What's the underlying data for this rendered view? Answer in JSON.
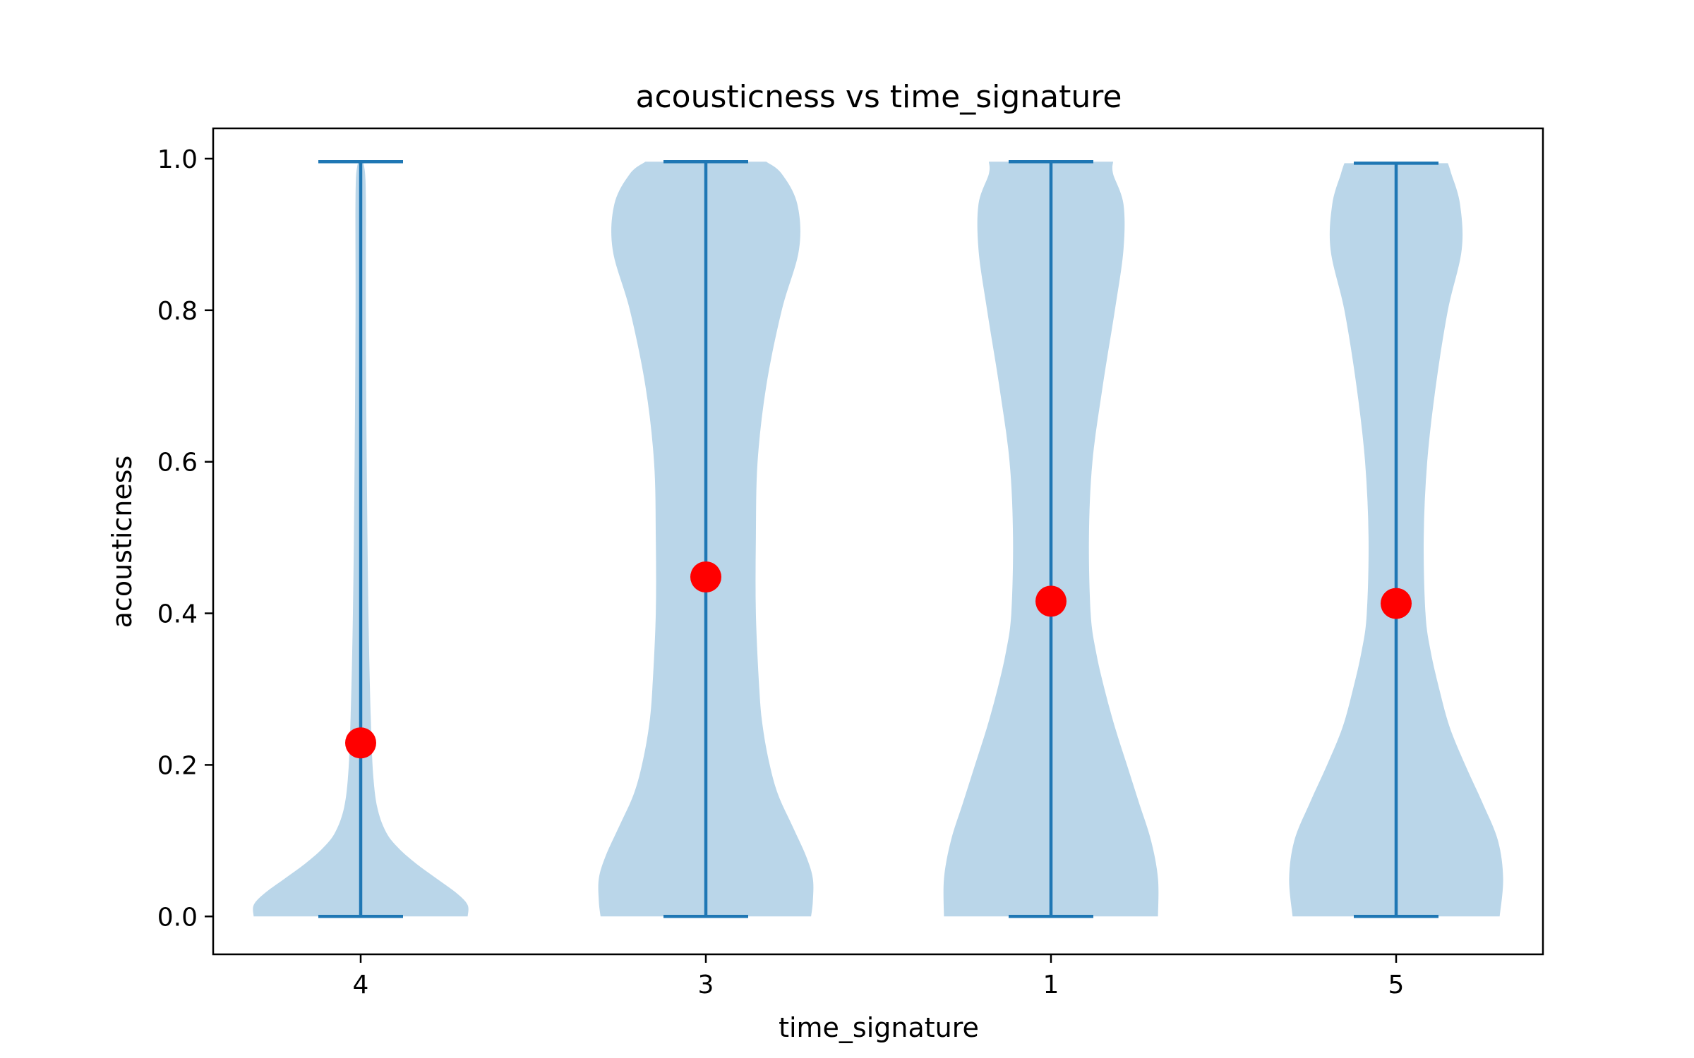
{
  "chart_data": {
    "type": "violin",
    "title": "acousticness vs time_signature",
    "xlabel": "time_signature",
    "ylabel": "acousticness",
    "categories": [
      "4",
      "3",
      "1",
      "5"
    ],
    "ylim": [
      -0.05,
      1.04
    ],
    "yticks": [
      0.0,
      0.2,
      0.4,
      0.6,
      0.8,
      1.0
    ],
    "ytick_labels": [
      "0.0",
      "0.2",
      "0.4",
      "0.6",
      "0.8",
      "1.0"
    ],
    "grid": false,
    "colors": {
      "violin_fill": "#bad6e9",
      "violin_line": "#1f77b4",
      "mean_marker": "#ff0000"
    },
    "violins": [
      {
        "category": "4",
        "min": 0.0,
        "max": 0.996,
        "mean": 0.229,
        "profile": [
          [
            0.0,
            0.62
          ],
          [
            0.015,
            0.62
          ],
          [
            0.03,
            0.56
          ],
          [
            0.05,
            0.44
          ],
          [
            0.07,
            0.32
          ],
          [
            0.09,
            0.22
          ],
          [
            0.11,
            0.15
          ],
          [
            0.14,
            0.1
          ],
          [
            0.18,
            0.075
          ],
          [
            0.25,
            0.06
          ],
          [
            0.4,
            0.045
          ],
          [
            0.6,
            0.035
          ],
          [
            0.8,
            0.03
          ],
          [
            0.95,
            0.03
          ],
          [
            0.99,
            0.02
          ],
          [
            0.996,
            0.0
          ]
        ]
      },
      {
        "category": "3",
        "min": 0.0,
        "max": 0.996,
        "mean": 0.448,
        "profile": [
          [
            0.0,
            0.61
          ],
          [
            0.02,
            0.62
          ],
          [
            0.05,
            0.62
          ],
          [
            0.08,
            0.58
          ],
          [
            0.12,
            0.5
          ],
          [
            0.16,
            0.42
          ],
          [
            0.2,
            0.37
          ],
          [
            0.25,
            0.33
          ],
          [
            0.3,
            0.31
          ],
          [
            0.4,
            0.29
          ],
          [
            0.5,
            0.29
          ],
          [
            0.6,
            0.3
          ],
          [
            0.7,
            0.35
          ],
          [
            0.8,
            0.44
          ],
          [
            0.88,
            0.54
          ],
          [
            0.94,
            0.53
          ],
          [
            0.98,
            0.44
          ],
          [
            0.996,
            0.35
          ]
        ]
      },
      {
        "category": "1",
        "min": 0.0,
        "max": 0.996,
        "mean": 0.416,
        "profile": [
          [
            0.0,
            0.62
          ],
          [
            0.05,
            0.62
          ],
          [
            0.1,
            0.58
          ],
          [
            0.15,
            0.51
          ],
          [
            0.2,
            0.44
          ],
          [
            0.25,
            0.37
          ],
          [
            0.3,
            0.31
          ],
          [
            0.35,
            0.26
          ],
          [
            0.4,
            0.23
          ],
          [
            0.5,
            0.22
          ],
          [
            0.6,
            0.24
          ],
          [
            0.7,
            0.3
          ],
          [
            0.8,
            0.37
          ],
          [
            0.88,
            0.42
          ],
          [
            0.94,
            0.42
          ],
          [
            0.98,
            0.36
          ],
          [
            0.996,
            0.36
          ]
        ]
      },
      {
        "category": "5",
        "min": 0.0,
        "max": 0.994,
        "mean": 0.413,
        "profile": [
          [
            0.0,
            0.6
          ],
          [
            0.05,
            0.62
          ],
          [
            0.1,
            0.59
          ],
          [
            0.15,
            0.5
          ],
          [
            0.2,
            0.4
          ],
          [
            0.25,
            0.31
          ],
          [
            0.3,
            0.25
          ],
          [
            0.35,
            0.2
          ],
          [
            0.4,
            0.17
          ],
          [
            0.5,
            0.16
          ],
          [
            0.6,
            0.18
          ],
          [
            0.7,
            0.23
          ],
          [
            0.8,
            0.3
          ],
          [
            0.88,
            0.38
          ],
          [
            0.94,
            0.37
          ],
          [
            0.98,
            0.32
          ],
          [
            0.994,
            0.3
          ]
        ]
      }
    ]
  }
}
